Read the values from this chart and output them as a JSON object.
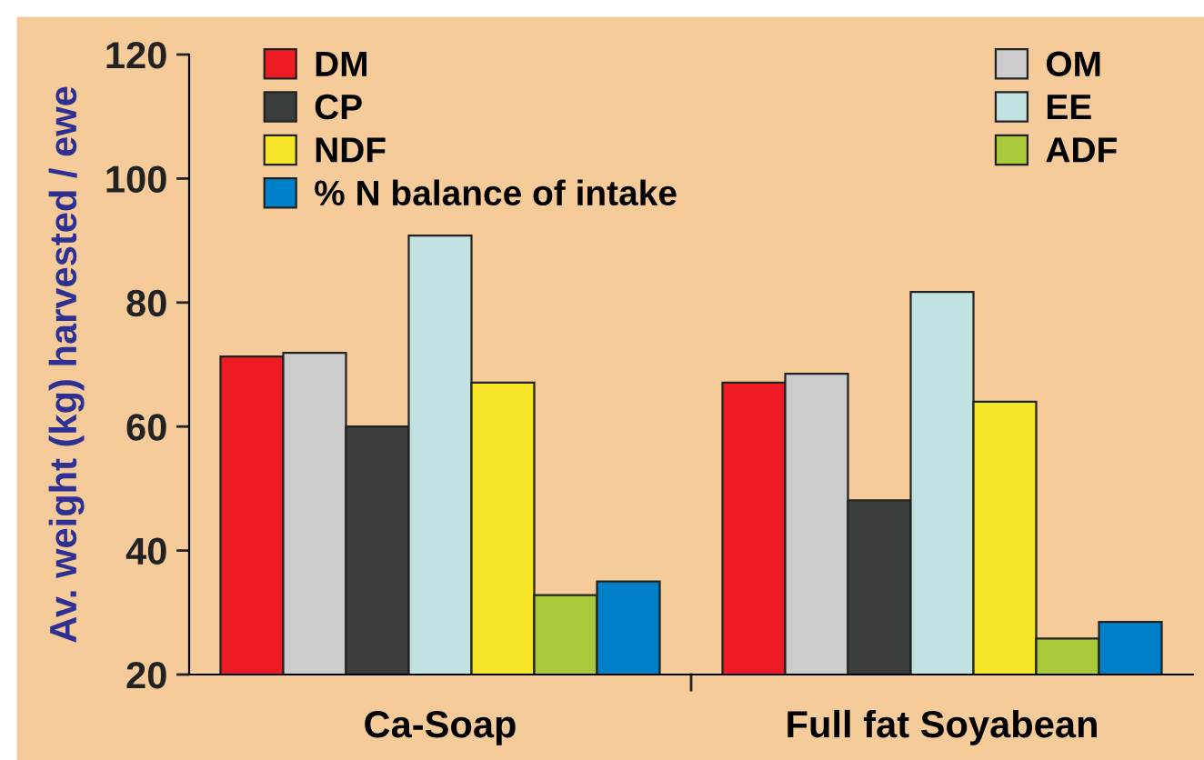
{
  "chart_data": {
    "type": "bar",
    "ylabel": "Av. weight (kg) harvested / ewe",
    "categories": [
      "Ca-Soap",
      "Full fat Soyabean"
    ],
    "series": [
      {
        "name": "DM",
        "color": "#ed1c24",
        "values": [
          71.3,
          67.1
        ]
      },
      {
        "name": "OM",
        "color": "#cccccc",
        "values": [
          71.9,
          68.5
        ]
      },
      {
        "name": "CP",
        "color": "#3a3f3e",
        "values": [
          60,
          48.1
        ]
      },
      {
        "name": "EE",
        "color": "#c2e2e2",
        "values": [
          90.8,
          81.7
        ]
      },
      {
        "name": "NDF",
        "color": "#f7e52a",
        "values": [
          67.1,
          64
        ]
      },
      {
        "name": "ADF",
        "color": "#a9c93a",
        "values": [
          32.8,
          25.8
        ]
      },
      {
        "name": "% N balance of intake",
        "color": "#0080c8",
        "values": [
          35,
          28.5
        ]
      }
    ],
    "ylim": [
      20,
      120
    ],
    "yticks": [
      20,
      40,
      60,
      80,
      100,
      120
    ],
    "grid": false,
    "legend": "top"
  }
}
